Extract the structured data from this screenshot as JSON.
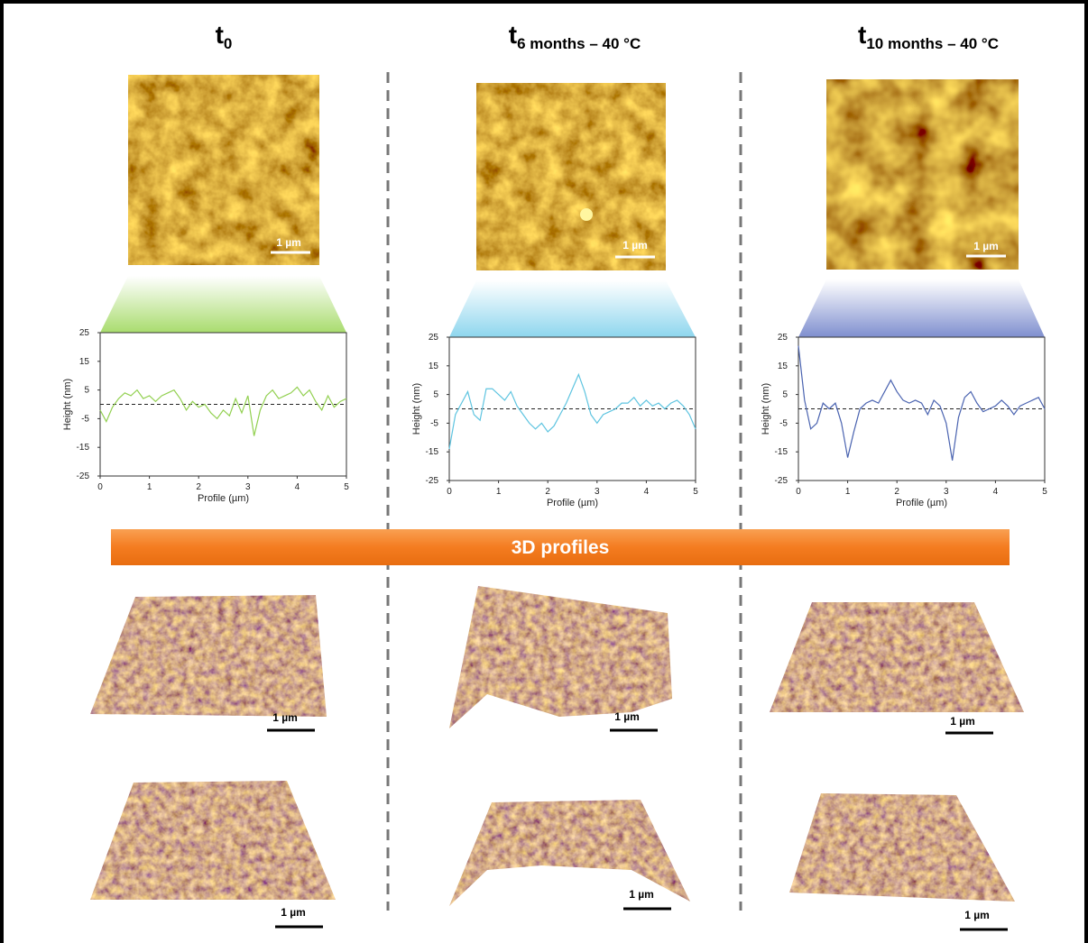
{
  "columns": [
    {
      "title": "t",
      "subscript": "0",
      "scale_bars": [
        "1 µm",
        "1 µm",
        "1 µm"
      ]
    },
    {
      "title": "t",
      "subscript": "6 months – 40 °C",
      "scale_bars": [
        "1 µm",
        "1 µm",
        "1 µm"
      ]
    },
    {
      "title": "t",
      "subscript": "10 months – 40 °C",
      "scale_bars": [
        "1 µm",
        "1 µm",
        "1 µm"
      ]
    }
  ],
  "banner": "3D profiles",
  "chart_data": [
    {
      "type": "line",
      "color": "#92d050",
      "xlabel": "Profile (µm)",
      "ylabel": "Height (nm)",
      "x": [
        0,
        0.125,
        0.25,
        0.375,
        0.5,
        0.625,
        0.75,
        0.875,
        1,
        1.125,
        1.25,
        1.375,
        1.5,
        1.625,
        1.75,
        1.875,
        2,
        2.125,
        2.25,
        2.375,
        2.5,
        2.625,
        2.75,
        2.875,
        3,
        3.125,
        3.25,
        3.375,
        3.5,
        3.625,
        3.75,
        3.875,
        4,
        4.125,
        4.25,
        4.375,
        4.5,
        4.625,
        4.75,
        4.875,
        5
      ],
      "values": [
        -2,
        -6,
        -1,
        2,
        4,
        3,
        5,
        2,
        3,
        1,
        3,
        4,
        5,
        2,
        -2,
        1,
        -1,
        0,
        -3,
        -5,
        -2,
        -4,
        2,
        -3,
        3,
        -11,
        -2,
        3,
        5,
        2,
        3,
        4,
        6,
        3,
        5,
        1,
        -2,
        3,
        -1,
        1,
        2
      ],
      "reference_line": 0,
      "xlim": [
        0,
        5
      ],
      "ylim": [
        -25,
        25
      ],
      "xticks": [
        0,
        1,
        2,
        3,
        4,
        5
      ],
      "yticks": [
        25,
        15,
        5,
        -5,
        -15,
        -25
      ]
    },
    {
      "type": "line",
      "color": "#5ec4e0",
      "xlabel": "Profile (µm)",
      "ylabel": "Height (nm)",
      "x": [
        0,
        0.125,
        0.25,
        0.375,
        0.5,
        0.625,
        0.75,
        0.875,
        1,
        1.125,
        1.25,
        1.375,
        1.5,
        1.625,
        1.75,
        1.875,
        2,
        2.125,
        2.25,
        2.375,
        2.5,
        2.625,
        2.75,
        2.875,
        3,
        3.125,
        3.25,
        3.375,
        3.5,
        3.625,
        3.75,
        3.875,
        4,
        4.125,
        4.25,
        4.375,
        4.5,
        4.625,
        4.75,
        4.875,
        5
      ],
      "values": [
        -14,
        -2,
        2,
        6,
        -2,
        -4,
        7,
        7,
        5,
        3,
        6,
        1,
        -2,
        -5,
        -7,
        -5,
        -8,
        -6,
        -2,
        2,
        7,
        12,
        6,
        -2,
        -5,
        -2,
        -1,
        0,
        2,
        2,
        4,
        1,
        3,
        1,
        2,
        0,
        2,
        3,
        1,
        -2,
        -7
      ],
      "reference_line": 0,
      "xlim": [
        0,
        5
      ],
      "ylim": [
        -25,
        25
      ],
      "xticks": [
        0,
        1,
        2,
        3,
        4,
        5
      ],
      "yticks": [
        25,
        15,
        5,
        -5,
        -15,
        -25
      ]
    },
    {
      "type": "line",
      "color": "#4a63b0",
      "xlabel": "Profile (µm)",
      "ylabel": "Height (nm)",
      "x": [
        0,
        0.125,
        0.25,
        0.375,
        0.5,
        0.625,
        0.75,
        0.875,
        1,
        1.125,
        1.25,
        1.375,
        1.5,
        1.625,
        1.75,
        1.875,
        2,
        2.125,
        2.25,
        2.375,
        2.5,
        2.625,
        2.75,
        2.875,
        3,
        3.125,
        3.25,
        3.375,
        3.5,
        3.625,
        3.75,
        3.875,
        4,
        4.125,
        4.25,
        4.375,
        4.5,
        4.625,
        4.75,
        4.875,
        5
      ],
      "values": [
        22,
        3,
        -7,
        -5,
        2,
        0,
        2,
        -5,
        -17,
        -8,
        0,
        2,
        3,
        2,
        6,
        10,
        6,
        3,
        2,
        3,
        2,
        -2,
        3,
        1,
        -5,
        -18,
        -3,
        4,
        6,
        2,
        -1,
        0,
        1,
        3,
        1,
        -2,
        1,
        2,
        3,
        4,
        0
      ],
      "reference_line": 0,
      "xlim": [
        0,
        5
      ],
      "ylim": [
        -25,
        25
      ],
      "xticks": [
        0,
        1,
        2,
        3,
        4,
        5
      ],
      "yticks": [
        25,
        15,
        5,
        -5,
        -15,
        -25
      ]
    }
  ]
}
